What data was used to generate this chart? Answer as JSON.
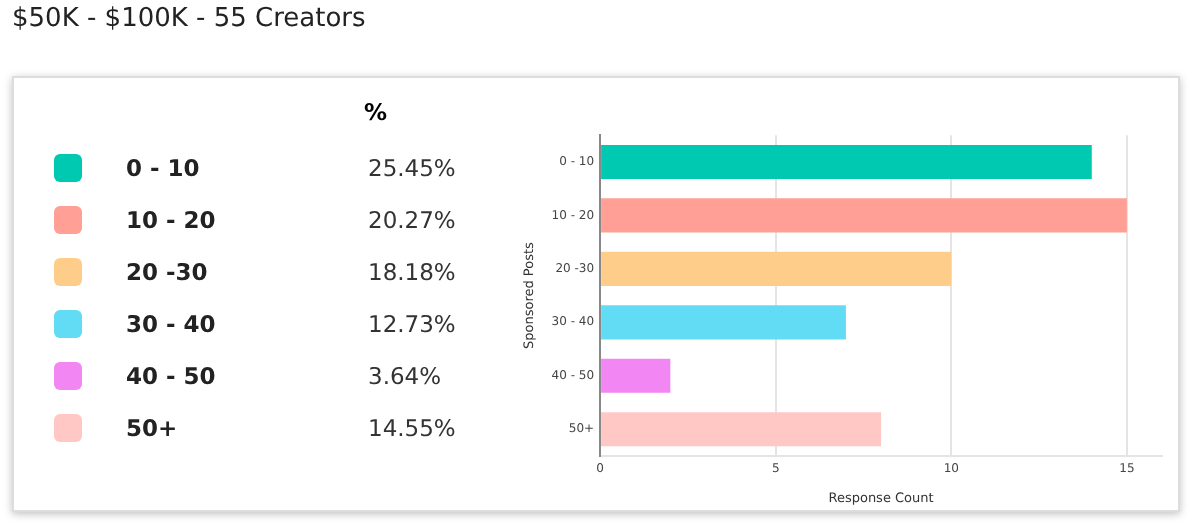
{
  "chart_data": {
    "type": "bar",
    "orientation": "horizontal",
    "title": "$50K - $100K - 55 Creators",
    "xlabel": "Response Count",
    "ylabel": "Sponsored Posts",
    "categories": [
      "0 - 10",
      "10 - 20",
      "20 -30",
      "30 - 40",
      "40 - 50",
      "50+"
    ],
    "values": [
      14,
      15,
      10,
      7,
      2,
      8
    ],
    "colors": [
      "#00c9b1",
      "#ff9f96",
      "#ffcd8a",
      "#62dcf5",
      "#f286f2",
      "#ffc8c4"
    ],
    "annotations": [
      "%",
      "25.45%",
      "20.27%",
      "18.18%",
      "12.73%",
      "3.64%",
      "14.55%"
    ],
    "xlim": [
      0,
      16
    ],
    "xticks": [
      0,
      5,
      10,
      15
    ],
    "grid": "x"
  }
}
